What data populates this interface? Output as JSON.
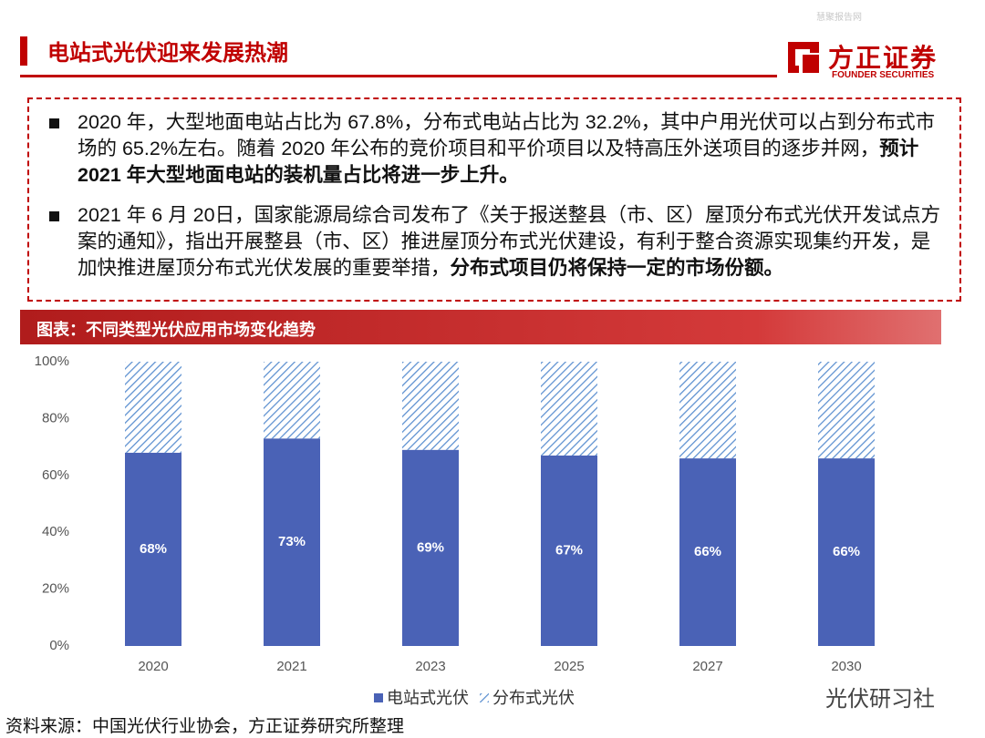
{
  "header": {
    "title": "电站式光伏迎来发展热潮",
    "logo": "方正证券",
    "logo_en": "FOUNDER SECURITIES",
    "watermark": "慧聚报告网"
  },
  "bullets": [
    {
      "text": "2020 年，大型地面电站占比为 67.8%，分布式电站占比为 32.2%，其中户用光伏可以占到分布式市场的 65.2%左右。随着 2020 年公布的竞价项目和平价项目以及特高压外送项目的逐步并网，",
      "bold": "预计 2021 年大型地面电站的装机量占比将进一步上升。"
    },
    {
      "text": "2021 年 6 月 20日，国家能源局综合司发布了《关于报送整县（市、区）屋顶分布式光伏开发试点方案的通知》，指出开展整县（市、区）推进屋顶分布式光伏建设，有利于整合资源实现集约开发，是加快推进屋顶分布式光伏发展的重要举措，",
      "bold": "分布式项目仍将保持一定的市场份额。"
    }
  ],
  "chart_data": {
    "type": "stacked_bar",
    "title": "图表：不同类型光伏应用市场变化趋势",
    "categories": [
      "2020",
      "2021",
      "2023",
      "2025",
      "2027",
      "2030"
    ],
    "series": [
      {
        "name": "电站式光伏",
        "color": "#4a62b6",
        "values": [
          68,
          73,
          69,
          67,
          66,
          66
        ],
        "value_labels": [
          "68%",
          "73%",
          "69%",
          "67%",
          "66%",
          "66%"
        ]
      },
      {
        "name": "分布式光伏",
        "color": "#5b8fd0",
        "pattern": "hatch",
        "values": [
          32,
          27,
          31,
          33,
          34,
          34
        ]
      }
    ],
    "ylim": [
      0,
      100
    ],
    "yticks": [
      {
        "value": 0,
        "label": "0%"
      },
      {
        "value": 20,
        "label": "20%"
      },
      {
        "value": 40,
        "label": "40%"
      },
      {
        "value": 60,
        "label": "60%"
      },
      {
        "value": 80,
        "label": "80%"
      },
      {
        "value": 100,
        "label": "100%"
      }
    ],
    "legend": "bottom"
  },
  "source": "资料来源：中国光伏行业协会，方正证券研究所整理",
  "wechat": "光伏研习社"
}
